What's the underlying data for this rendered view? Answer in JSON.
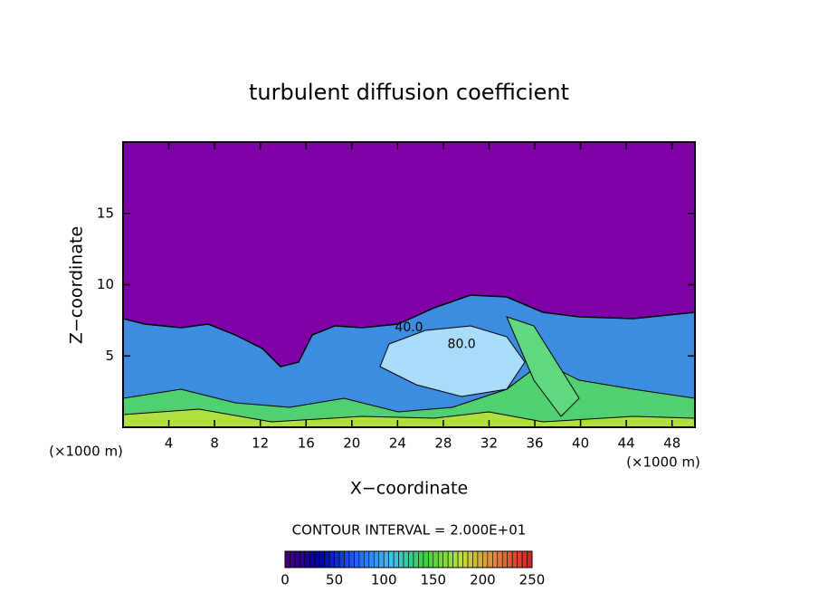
{
  "chart_data": {
    "type": "contour",
    "title": "turbulent diffusion coefficient",
    "x_label": "X−coordinate",
    "y_label": "Z−coordinate",
    "x_unit": "(×1000 m)",
    "y_unit": "(×1000 m)",
    "xlim": [
      0,
      50
    ],
    "ylim": [
      0,
      20
    ],
    "xticks": [
      4,
      8,
      12,
      16,
      20,
      24,
      28,
      32,
      36,
      40,
      44,
      48
    ],
    "yticks": [
      5,
      10,
      15
    ],
    "contour_labels": [
      {
        "value": 40,
        "label": "40.0",
        "x": 25,
        "y": 7
      },
      {
        "value": 80,
        "label": "80.0",
        "x": 29.6,
        "y": 5.8
      }
    ],
    "contour_interval_label": "CONTOUR INTERVAL = 2.000E+01",
    "colorbar": {
      "lim": [
        0,
        250
      ],
      "ticks": [
        0,
        50,
        100,
        150,
        200,
        250
      ],
      "colors": [
        "#4a0078",
        "#0000a0",
        "#2060ff",
        "#40c0f0",
        "#40d040",
        "#c0e040",
        "#e08040",
        "#d02020"
      ]
    }
  }
}
